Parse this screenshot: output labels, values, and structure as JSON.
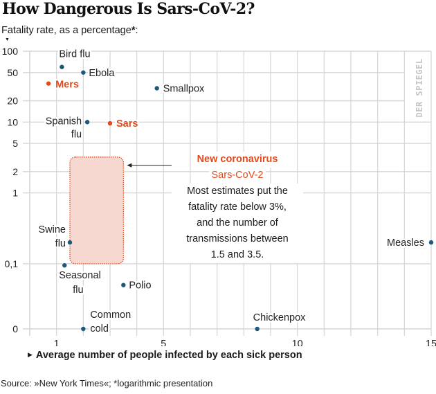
{
  "header": {
    "title": "How Dangerous Is Sars-CoV-2?",
    "ylabel_text": "Fatality rate, as a percentage",
    "ylabel_star": "*",
    "ylabel_colon": ":"
  },
  "footer": {
    "xlabel": "Average number of people infected by each sick person",
    "source": "Source: »New York Times«; *logarithmic presentation"
  },
  "watermark": "DER SPIEGEL",
  "colors": {
    "default_point": "#1d5a7a",
    "highlight": "#e4491b",
    "grid": "#d6d6d6",
    "region_fill": "#f6d8d0",
    "region_stroke": "#e4491b"
  },
  "annotation": {
    "title": "New coronavirus",
    "subtitle": "Sars-CoV-2",
    "lines": [
      "Most estimates put the",
      "fatality rate below 3%,",
      "and the number of",
      "transmissions between",
      "1.5 and 3.5."
    ]
  },
  "chart_data": {
    "type": "scatter",
    "title": "How Dangerous Is Sars-CoV-2?",
    "xlabel": "Average number of people infected by each sick person",
    "ylabel": "Fatality rate, as a percentage*",
    "xlim": [
      0,
      15
    ],
    "y_scale": "log",
    "ylim": [
      0,
      100
    ],
    "grid": true,
    "x_ticks": [
      {
        "value": 1,
        "label": "1"
      },
      {
        "value": 5,
        "label": "5"
      },
      {
        "value": 10,
        "label": "10"
      },
      {
        "value": 15,
        "label": "15"
      }
    ],
    "y_ticks": [
      {
        "value": 100,
        "label": "100"
      },
      {
        "value": 50,
        "label": "50"
      },
      {
        "value": 20,
        "label": "20"
      },
      {
        "value": 10,
        "label": "10"
      },
      {
        "value": 5,
        "label": "5"
      },
      {
        "value": 2,
        "label": "2"
      },
      {
        "value": 1,
        "label": "1"
      },
      {
        "value": 0.1,
        "label": "0,1"
      },
      {
        "value": 0,
        "label": "0"
      }
    ],
    "points": [
      {
        "name": "Bird flu",
        "label_lines": [
          "Bird flu"
        ],
        "x": 1.2,
        "y": 60,
        "highlight": false
      },
      {
        "name": "Ebola",
        "label_lines": [
          "Ebola"
        ],
        "x": 2.0,
        "y": 50,
        "highlight": false
      },
      {
        "name": "Mers",
        "label_lines": [
          "Mers"
        ],
        "x": 0.7,
        "y": 35,
        "highlight": true
      },
      {
        "name": "Smallpox",
        "label_lines": [
          "Smallpox"
        ],
        "x": 4.75,
        "y": 30,
        "highlight": false
      },
      {
        "name": "Spanish flu",
        "label_lines": [
          "Spanish",
          "flu"
        ],
        "x": 2.15,
        "y": 10,
        "highlight": false
      },
      {
        "name": "Sars",
        "label_lines": [
          "Sars"
        ],
        "x": 3.0,
        "y": 9.6,
        "highlight": true
      },
      {
        "name": "Swine flu",
        "label_lines": [
          "Swine",
          "flu"
        ],
        "x": 1.5,
        "y": 0.2,
        "highlight": false
      },
      {
        "name": "Seasonal flu",
        "label_lines": [
          "Seasonal",
          "flu"
        ],
        "x": 1.3,
        "y": 0.095,
        "highlight": false
      },
      {
        "name": "Polio",
        "label_lines": [
          "Polio"
        ],
        "x": 3.5,
        "y": 0.05,
        "highlight": false
      },
      {
        "name": "Common cold",
        "label_lines": [
          "Common",
          "cold"
        ],
        "x": 2.0,
        "y": 0,
        "highlight": false
      },
      {
        "name": "Chickenpox",
        "label_lines": [
          "Chickenpox"
        ],
        "x": 8.5,
        "y": 0,
        "highlight": false
      },
      {
        "name": "Measles",
        "label_lines": [
          "Measles"
        ],
        "x": 15,
        "y": 0.2,
        "highlight": false
      }
    ],
    "highlight_region": {
      "name": "Sars-CoV-2 estimate",
      "x_range": [
        1.5,
        3.5
      ],
      "y_range": [
        0.1,
        3
      ]
    }
  }
}
